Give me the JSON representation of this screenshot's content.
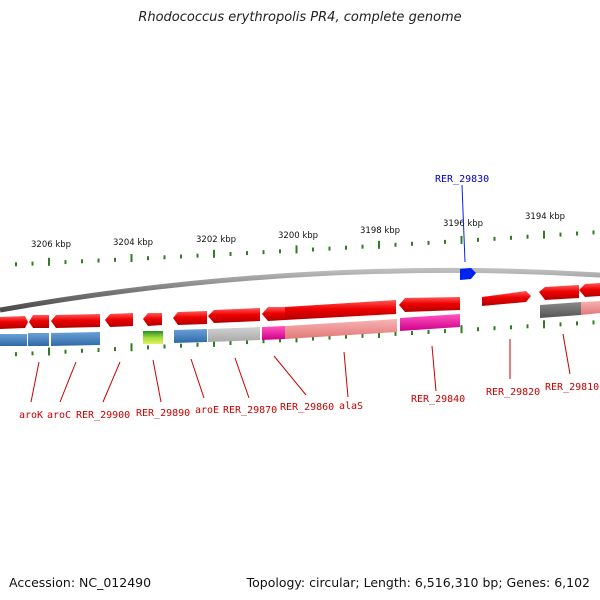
{
  "title": "Rhodococcus erythropolis PR4, complete genome",
  "footer": {
    "accession": "Accession: NC_012490",
    "summary": "Topology: circular; Length: 6,516,310 bp; Genes: 6,102"
  },
  "colors": {
    "backbone": "#8a8a8a",
    "tick": "#2e7d1e",
    "forward_gene": "#e80000",
    "label_red": "#cc0000",
    "label_blue": "#0000cc",
    "highlight": "#0022ee"
  },
  "scale_ticks": [
    {
      "label": "3206 kbp"
    },
    {
      "label": "3204 kbp"
    },
    {
      "label": "3202 kbp"
    },
    {
      "label": "3200 kbp"
    },
    {
      "label": "3198 kbp"
    },
    {
      "label": "3196 kbp"
    },
    {
      "label": "3194 kbp"
    }
  ],
  "gene_labels": [
    {
      "text": "aroK"
    },
    {
      "text": "aroC"
    },
    {
      "text": "RER_29900"
    },
    {
      "text": "RER_29890"
    },
    {
      "text": "aroE"
    },
    {
      "text": "RER_29870"
    },
    {
      "text": "RER_29860"
    },
    {
      "text": "alaS"
    },
    {
      "text": "RER_29840"
    },
    {
      "text": "RER_29820"
    },
    {
      "text": "RER_29810"
    }
  ],
  "highlight_label": {
    "text": "RER_29830"
  }
}
